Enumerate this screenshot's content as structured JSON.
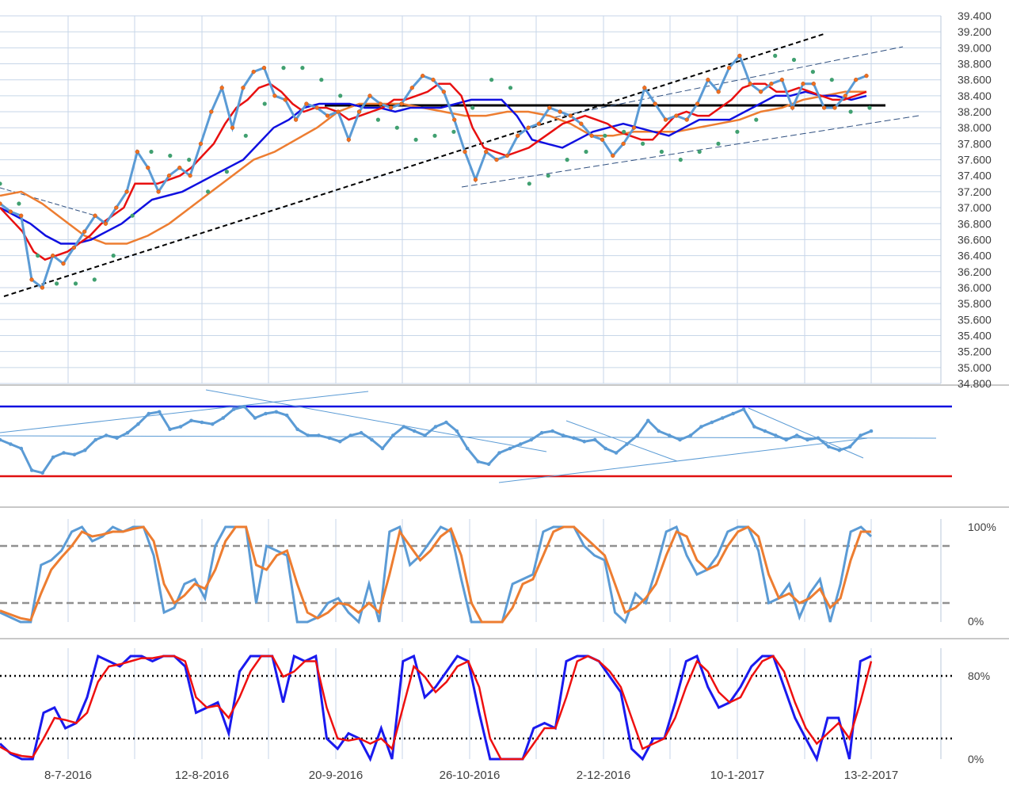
{
  "chart_data": [
    {
      "type": "line",
      "panel": "price",
      "y_ticks": [
        "39.400",
        "39.200",
        "39.000",
        "38.800",
        "38.600",
        "38.400",
        "38.200",
        "38.000",
        "37.800",
        "37.600",
        "37.400",
        "37.200",
        "37.000",
        "36.800",
        "36.600",
        "36.400",
        "36.200",
        "36.000",
        "35.800",
        "35.600",
        "35.400",
        "35.200",
        "35.000",
        "34.800"
      ],
      "ylim": [
        34800,
        39400
      ],
      "grid": true,
      "series": [
        {
          "role": "price",
          "color": "#5b9bd5",
          "markers": "#f07020",
          "values": [
            37050,
            36950,
            36900,
            36100,
            36000,
            36400,
            36300,
            36500,
            36700,
            36900,
            36800,
            37000,
            37200,
            37700,
            37500,
            37200,
            37400,
            37500,
            37400,
            37800,
            38200,
            38500,
            38000,
            38500,
            38700,
            38750,
            38400,
            38350,
            38100,
            38300,
            38250,
            38150,
            38200,
            37850,
            38200,
            38400,
            38300,
            38250,
            38300,
            38500,
            38650,
            38600,
            38450,
            38100,
            37700,
            37350,
            37700,
            37600,
            37650,
            37900,
            38000,
            38050,
            38250,
            38200,
            38150,
            38050,
            37900,
            37850,
            37650,
            37800,
            38000,
            38500,
            38300,
            38100,
            38150,
            38100,
            38300,
            38600,
            38450,
            38750,
            38900,
            38550,
            38450,
            38550,
            38600,
            38250,
            38550,
            38550,
            38250,
            38250,
            38400,
            38600,
            38650
          ]
        },
        {
          "role": "ma-short",
          "color": "#e81010",
          "values": [
            37000,
            36850,
            36700,
            36450,
            36350,
            36400,
            36450,
            36550,
            36650,
            36800,
            36900,
            37000,
            37300,
            37300,
            37300,
            37350,
            37400,
            37500,
            37650,
            37800,
            38050,
            38250,
            38350,
            38500,
            38550,
            38450,
            38300,
            38200,
            38250,
            38250,
            38200,
            38100,
            38150,
            38200,
            38250,
            38350,
            38350,
            38400,
            38450,
            38550,
            38550,
            38400,
            38000,
            37750,
            37700,
            37650,
            37700,
            37750,
            37850,
            37950,
            38050,
            38100,
            38150,
            38100,
            38050,
            37950,
            37900,
            37850,
            37850,
            38000,
            38150,
            38200,
            38150,
            38150,
            38250,
            38350,
            38500,
            38550,
            38550,
            38450,
            38450,
            38500,
            38450,
            38400,
            38350,
            38350,
            38400,
            38450
          ]
        },
        {
          "role": "ma-mid",
          "color": "#1010e0",
          "values": [
            37000,
            36900,
            36800,
            36650,
            36550,
            36550,
            36600,
            36700,
            36800,
            36950,
            37100,
            37150,
            37200,
            37300,
            37400,
            37500,
            37600,
            37800,
            38000,
            38100,
            38250,
            38300,
            38300,
            38300,
            38250,
            38250,
            38200,
            38250,
            38250,
            38250,
            38300,
            38350,
            38350,
            38350,
            38150,
            37850,
            37800,
            37750,
            37850,
            37950,
            38000,
            38050,
            38000,
            37950,
            37900,
            38000,
            38100,
            38100,
            38100,
            38200,
            38300,
            38400,
            38400,
            38450,
            38400,
            38400,
            38350,
            38400
          ]
        },
        {
          "role": "ma-long",
          "color": "#ed7d31",
          "values": [
            37150,
            37200,
            37050,
            36850,
            36650,
            36550,
            36550,
            36650,
            36800,
            37000,
            37200,
            37400,
            37600,
            37700,
            37850,
            38000,
            38200,
            38300,
            38300,
            38300,
            38250,
            38200,
            38150,
            38150,
            38200,
            38200,
            38150,
            38050,
            37900,
            37900,
            37950,
            37950,
            37950,
            38000,
            38050,
            38100,
            38200,
            38250,
            38350,
            38400,
            38450,
            38450
          ]
        },
        {
          "role": "sar",
          "color": "#40a070",
          "values": [
            37300,
            37050,
            36400,
            36050,
            36050,
            36100,
            36400,
            36900,
            37700,
            37650,
            37600,
            37200,
            37450,
            37900,
            38300,
            38750,
            38750,
            38600,
            38400,
            38200,
            38100,
            38000,
            37850,
            37900,
            37950,
            38250,
            38600,
            38500,
            37300,
            37400,
            37600,
            37700,
            37900,
            37950,
            37800,
            37700,
            37600,
            37700,
            37800,
            37950,
            38100,
            38900,
            38850,
            38700,
            38600,
            38200,
            38250
          ]
        }
      ],
      "trendlines": [
        "support-black-dashed",
        "resistance-black-solid",
        "channel-upper-dashed",
        "channel-lower-dashed"
      ]
    },
    {
      "type": "line",
      "panel": "oscillator",
      "series": [
        {
          "role": "oscillator",
          "color": "#5b9bd5",
          "values": [
            50,
            45,
            40,
            15,
            12,
            30,
            35,
            33,
            38,
            50,
            55,
            52,
            58,
            68,
            80,
            82,
            62,
            65,
            72,
            70,
            68,
            75,
            85,
            88,
            75,
            80,
            82,
            78,
            62,
            55,
            55,
            52,
            48,
            55,
            58,
            50,
            40,
            55,
            65,
            60,
            55,
            65,
            70,
            60,
            40,
            25,
            22,
            35,
            40,
            45,
            50,
            58,
            60,
            55,
            52,
            48,
            50,
            40,
            35,
            45,
            55,
            72,
            60,
            55,
            50,
            55,
            65,
            70,
            75,
            80,
            85,
            65,
            60,
            55,
            50,
            55,
            50,
            52,
            42,
            38,
            42,
            55,
            60
          ]
        },
        {
          "role": "overbought-line",
          "color": "#1010e0"
        },
        {
          "role": "oversold-line",
          "color": "#e01010"
        }
      ]
    },
    {
      "type": "line",
      "panel": "stochastic-1",
      "y_ticks": [
        "100%",
        "0%"
      ],
      "ylim": [
        0,
        100
      ],
      "series": [
        {
          "role": "k",
          "color": "#5b9bd5",
          "values": [
            10,
            5,
            0,
            0,
            60,
            65,
            75,
            95,
            100,
            85,
            90,
            100,
            95,
            100,
            100,
            70,
            10,
            15,
            40,
            45,
            25,
            80,
            100,
            100,
            100,
            20,
            80,
            75,
            70,
            0,
            0,
            5,
            20,
            25,
            10,
            0,
            40,
            0,
            95,
            100,
            60,
            70,
            85,
            100,
            95,
            45,
            0,
            0,
            0,
            0,
            40,
            45,
            50,
            95,
            100,
            100,
            100,
            80,
            70,
            65,
            10,
            0,
            30,
            20,
            55,
            95,
            100,
            70,
            50,
            55,
            70,
            95,
            100,
            100,
            75,
            20,
            25,
            40,
            5,
            30,
            45,
            0,
            40,
            95,
            100,
            90
          ]
        },
        {
          "role": "d",
          "color": "#ed7d31",
          "values": [
            12,
            8,
            4,
            2,
            30,
            55,
            68,
            80,
            95,
            90,
            92,
            95,
            95,
            98,
            100,
            85,
            40,
            20,
            28,
            40,
            35,
            55,
            85,
            100,
            100,
            60,
            55,
            70,
            75,
            40,
            10,
            4,
            10,
            20,
            18,
            10,
            20,
            10,
            50,
            95,
            80,
            65,
            75,
            90,
            98,
            70,
            20,
            0,
            0,
            0,
            15,
            40,
            45,
            70,
            95,
            100,
            100,
            90,
            80,
            70,
            40,
            10,
            15,
            25,
            40,
            70,
            95,
            90,
            65,
            55,
            60,
            80,
            95,
            100,
            90,
            50,
            25,
            30,
            20,
            25,
            35,
            15,
            25,
            65,
            95,
            95
          ]
        }
      ]
    },
    {
      "type": "line",
      "panel": "stochastic-2",
      "x_ticks": [
        "8-7-2016",
        "12-8-2016",
        "20-9-2016",
        "26-10-2016",
        "2-12-2016",
        "10-1-2017",
        "13-2-2017"
      ],
      "y_ticks": [
        "80%",
        "0%"
      ],
      "ylim": [
        0,
        100
      ],
      "series": [
        {
          "role": "k",
          "color": "#1a1aee",
          "values": [
            15,
            5,
            0,
            0,
            45,
            50,
            30,
            35,
            60,
            100,
            95,
            90,
            100,
            100,
            95,
            100,
            100,
            90,
            45,
            50,
            55,
            25,
            85,
            100,
            100,
            100,
            55,
            100,
            95,
            100,
            20,
            10,
            25,
            20,
            0,
            30,
            0,
            95,
            100,
            60,
            70,
            85,
            100,
            95,
            45,
            0,
            0,
            0,
            0,
            30,
            35,
            30,
            95,
            100,
            100,
            95,
            80,
            65,
            10,
            0,
            20,
            20,
            55,
            95,
            100,
            70,
            50,
            55,
            70,
            90,
            100,
            100,
            70,
            40,
            20,
            0,
            40,
            40,
            0,
            95,
            100
          ]
        },
        {
          "role": "d",
          "color": "#ee1010",
          "values": [
            12,
            6,
            3,
            2,
            20,
            40,
            38,
            35,
            45,
            75,
            90,
            92,
            95,
            98,
            98,
            100,
            100,
            95,
            60,
            50,
            52,
            40,
            60,
            85,
            100,
            100,
            80,
            85,
            95,
            95,
            50,
            20,
            18,
            20,
            15,
            20,
            10,
            50,
            90,
            80,
            65,
            75,
            90,
            95,
            70,
            20,
            0,
            0,
            0,
            15,
            30,
            30,
            60,
            95,
            100,
            95,
            85,
            70,
            40,
            10,
            15,
            20,
            40,
            70,
            95,
            85,
            65,
            55,
            60,
            80,
            95,
            100,
            85,
            55,
            30,
            15,
            25,
            35,
            20,
            55,
            95
          ]
        }
      ]
    }
  ]
}
